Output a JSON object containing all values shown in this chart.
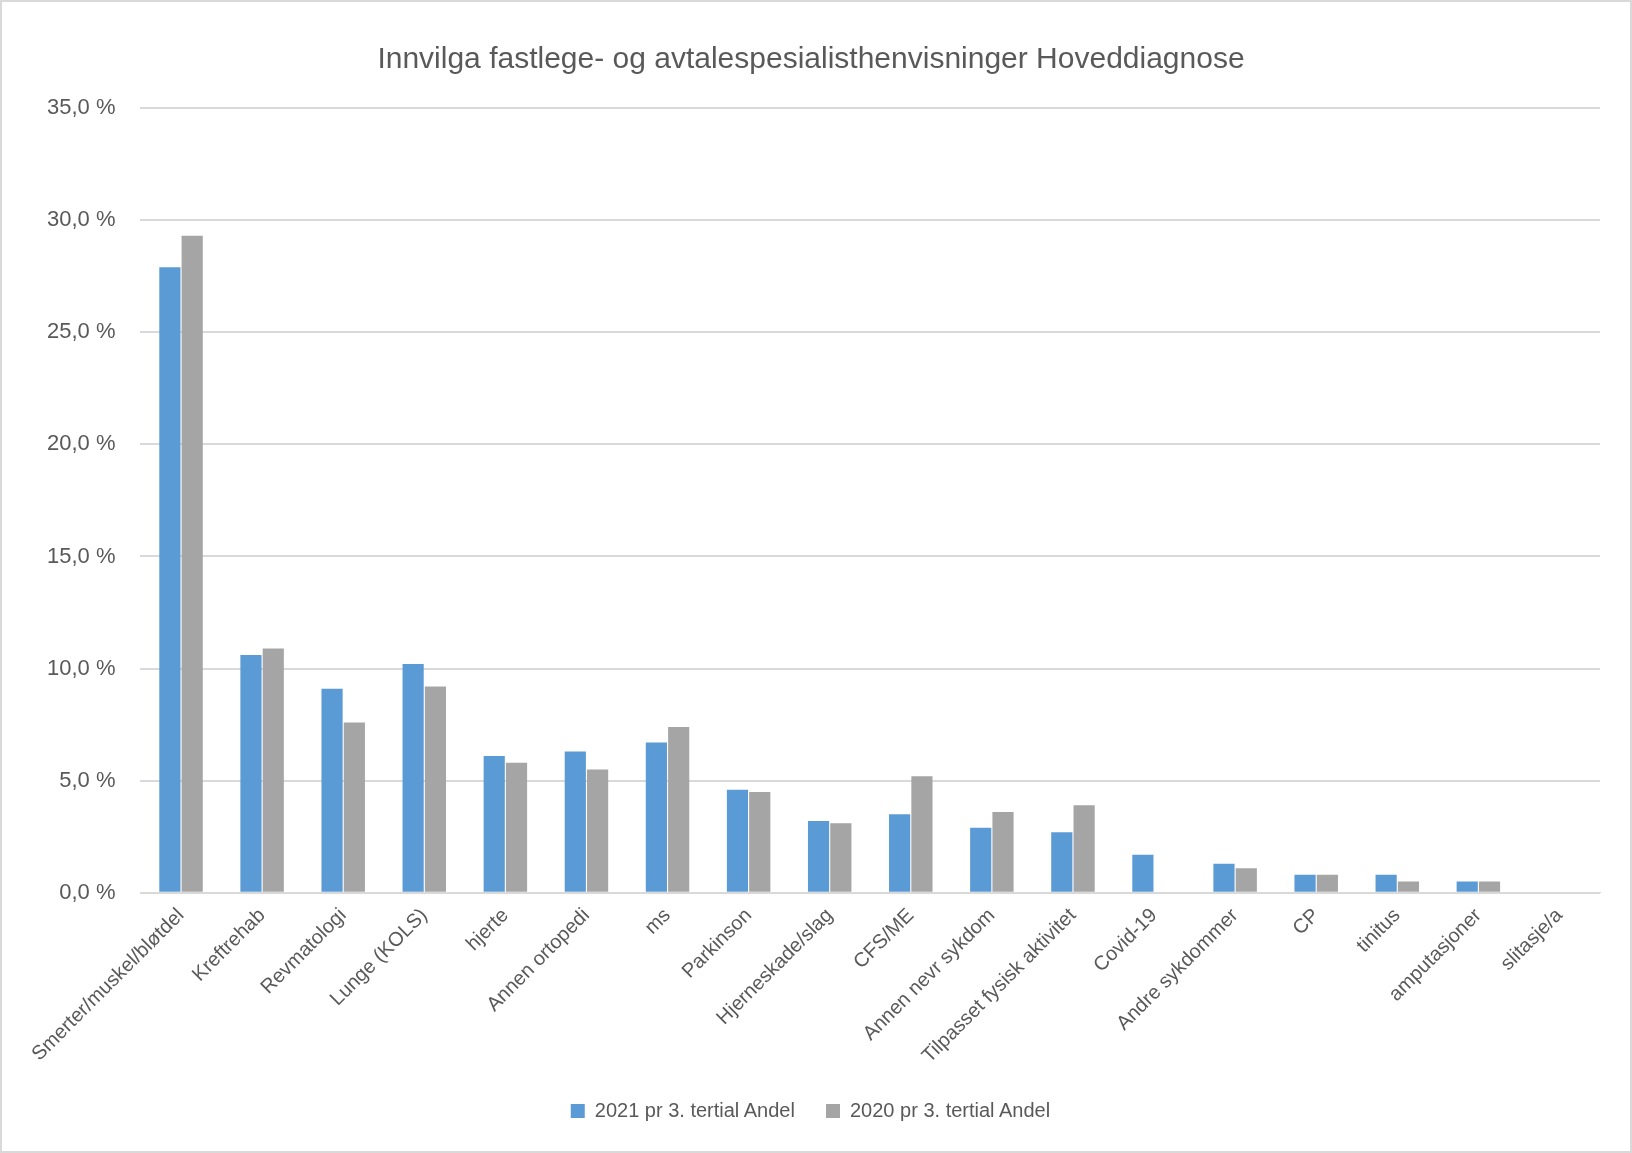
{
  "chart_data": {
    "type": "bar",
    "title": "Innvilga fastlege- og avtalespesialisthenvisninger Hoveddiagnose",
    "categories": [
      "Smerter/muskel/bløtdel",
      "Kreftrehab",
      "Revmatologi",
      "Lunge (KOLS)",
      "hjerte",
      "Annen ortopedi",
      "ms",
      "Parkinson",
      "Hjerneskade/slag",
      "CFS/ME",
      "Annen nevr sykdom",
      "Tilpasset fysisk aktivitet",
      "Covid-19",
      "Andre sykdommer",
      "CP",
      "tinitus",
      "amputasjoner",
      "slitasje/a"
    ],
    "series": [
      {
        "name": "2021 pr 3. tertial Andel",
        "color": "#5b9bd5",
        "values": [
          27.9,
          10.6,
          9.1,
          10.2,
          6.1,
          6.3,
          6.7,
          4.6,
          3.2,
          3.5,
          2.9,
          2.7,
          1.7,
          1.3,
          0.8,
          0.8,
          0.5,
          null
        ]
      },
      {
        "name": "2020 pr 3. tertial Andel",
        "color": "#a5a5a5",
        "values": [
          29.3,
          10.9,
          7.6,
          9.2,
          5.8,
          5.5,
          7.4,
          4.5,
          3.1,
          5.2,
          3.6,
          3.9,
          null,
          1.1,
          0.8,
          0.5,
          0.5,
          null
        ]
      }
    ],
    "ylim": [
      0,
      35
    ],
    "yticks": [
      {
        "value": 0,
        "label": "0,0 %"
      },
      {
        "value": 5,
        "label": "5,0 %"
      },
      {
        "value": 10,
        "label": "10,0 %"
      },
      {
        "value": 15,
        "label": "15,0 %"
      },
      {
        "value": 20,
        "label": "20,0 %"
      },
      {
        "value": 25,
        "label": "25,0 %"
      },
      {
        "value": 30,
        "label": "30,0 %"
      },
      {
        "value": 35,
        "label": "35,0 %"
      }
    ],
    "grid": "y",
    "legend": "bottom"
  }
}
